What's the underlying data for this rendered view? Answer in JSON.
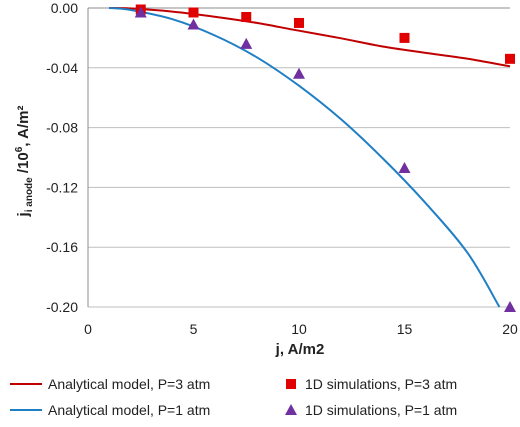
{
  "chart_data": {
    "type": "line",
    "xlabel": "j, A/m2",
    "ylabel_main": "j",
    "ylabel_sub": "i anode",
    "ylabel_rest": " /10",
    "ylabel_sup": "6",
    "ylabel_unit": ", A/m²",
    "xlim": [
      0,
      20
    ],
    "ylim": [
      -0.2,
      0.0
    ],
    "xticks": [
      "0",
      "5",
      "10",
      "15",
      "20"
    ],
    "xtick_values": [
      0,
      5,
      10,
      15,
      20
    ],
    "yticks": [
      "0.00",
      "-0.04",
      "-0.08",
      "-0.12",
      "-0.16",
      "-0.20"
    ],
    "ytick_values": [
      0.0,
      -0.04,
      -0.08,
      -0.12,
      -0.16,
      -0.2
    ],
    "grid": "horizontal",
    "legend_position": "bottom",
    "series": [
      {
        "name": "Analytical model, P=3 atm",
        "kind": "line",
        "color": "#c00000",
        "x": [
          1,
          2,
          4,
          6,
          8,
          10,
          12,
          14,
          16,
          18,
          20
        ],
        "y": [
          0.0,
          -0.0003,
          -0.0024,
          -0.0058,
          -0.01,
          -0.0152,
          -0.0203,
          -0.0258,
          -0.03,
          -0.034,
          -0.039
        ]
      },
      {
        "name": "1D simulations, P=3 atm",
        "kind": "scatter",
        "marker": "square",
        "color": "#e00000",
        "x": [
          2.5,
          5,
          7.5,
          10,
          15,
          20
        ],
        "y": [
          -0.001,
          -0.003,
          -0.006,
          -0.01,
          -0.02,
          -0.034
        ]
      },
      {
        "name": "Analytical model, P=1 atm",
        "kind": "line",
        "color": "#1f7fc4",
        "x": [
          1,
          2,
          4,
          6,
          8,
          10,
          12,
          14,
          16,
          18,
          19.5
        ],
        "y": [
          0.0,
          -0.0013,
          -0.0075,
          -0.0183,
          -0.033,
          -0.052,
          -0.0745,
          -0.101,
          -0.1305,
          -0.164,
          -0.2
        ]
      },
      {
        "name": "1D simulations, P=1 atm",
        "kind": "scatter",
        "marker": "triangle",
        "color": "#7030a0",
        "x": [
          2.5,
          5,
          7.5,
          10,
          15,
          20
        ],
        "y": [
          -0.003,
          -0.011,
          -0.024,
          -0.044,
          -0.107,
          -0.2
        ]
      }
    ]
  }
}
